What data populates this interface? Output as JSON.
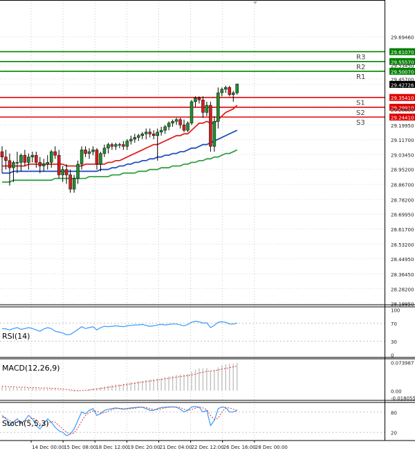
{
  "chart_data": [
    {
      "type": "candlestick",
      "panel": "price",
      "x_ticks": [
        "16:00",
        "14 Dec 00:00",
        "15 Dec 08:00",
        "18 Dec 12:00",
        "19 Dec 20:00",
        "21 Dec 04:00",
        "22 Dec 12:00",
        "26 Dec 16:00",
        "28 Dec 00:00"
      ],
      "y_ticks": [
        "29.69460",
        "29.61070",
        "29.55570",
        "29.53450",
        "29.50070",
        "29.45700",
        "29.42726",
        "29.35410",
        "29.29910",
        "29.28600",
        "29.24410",
        "29.19950",
        "29.11700",
        "29.03450",
        "28.95200",
        "28.86700",
        "28.78200",
        "28.69950",
        "28.61700",
        "28.53200",
        "28.44950",
        "28.36450",
        "28.28200",
        "28.19950"
      ],
      "ylim": [
        28.1995,
        29.7066
      ],
      "last_price": "29.42726",
      "grid": true,
      "levels": [
        {
          "name": "R3",
          "value": 29.6107,
          "value_label": "29.61070",
          "color": "#008000"
        },
        {
          "name": "R2",
          "value": 29.5557,
          "value_label": "29.55570",
          "color": "#008000"
        },
        {
          "name": "R1",
          "value": 29.5007,
          "value_label": "29.50070",
          "color": "#008000"
        },
        {
          "name": "S1",
          "value": 29.3541,
          "value_label": "29.35410",
          "color": "#e00000"
        },
        {
          "name": "S2",
          "value": 29.2991,
          "value_label": "29.29910",
          "color": "#e00000"
        },
        {
          "name": "S3",
          "value": 29.2441,
          "value_label": "29.24410",
          "color": "#e00000"
        }
      ],
      "candles": [
        [
          29.05,
          29.08,
          28.93,
          29.02
        ],
        [
          29.02,
          29.06,
          28.95,
          29.0
        ],
        [
          29.0,
          29.04,
          28.86,
          28.96
        ],
        [
          28.96,
          29.0,
          28.88,
          28.99
        ],
        [
          28.99,
          29.05,
          28.93,
          28.99
        ],
        [
          28.99,
          29.04,
          28.94,
          29.03
        ],
        [
          29.03,
          29.06,
          28.97,
          28.99
        ],
        [
          28.99,
          29.04,
          28.95,
          29.02
        ],
        [
          29.02,
          29.05,
          28.99,
          29.03
        ],
        [
          29.03,
          29.05,
          28.96,
          28.99
        ],
        [
          28.99,
          29.02,
          28.93,
          28.97
        ],
        [
          28.97,
          29.01,
          28.94,
          28.98
        ],
        [
          28.98,
          29.03,
          28.95,
          28.99
        ],
        [
          28.99,
          29.06,
          28.96,
          29.05
        ],
        [
          29.05,
          29.08,
          29.01,
          29.03
        ],
        [
          29.03,
          29.06,
          28.9,
          28.92
        ],
        [
          28.92,
          28.97,
          28.88,
          28.95
        ],
        [
          28.95,
          28.98,
          28.87,
          28.92
        ],
        [
          28.92,
          28.95,
          28.82,
          28.84
        ],
        [
          28.84,
          28.92,
          28.82,
          28.9
        ],
        [
          28.9,
          29.0,
          28.87,
          28.98
        ],
        [
          28.98,
          29.08,
          28.95,
          29.06
        ],
        [
          29.06,
          29.08,
          29.02,
          29.04
        ],
        [
          29.04,
          29.07,
          29.01,
          29.05
        ],
        [
          29.05,
          29.08,
          29.03,
          29.06
        ],
        [
          29.06,
          29.07,
          28.95,
          28.98
        ],
        [
          28.98,
          29.05,
          28.94,
          29.04
        ],
        [
          29.04,
          29.09,
          29.02,
          29.07
        ],
        [
          29.07,
          29.1,
          29.04,
          29.09
        ],
        [
          29.09,
          29.1,
          29.06,
          29.08
        ],
        [
          29.08,
          29.1,
          29.06,
          29.09
        ],
        [
          29.09,
          29.1,
          29.07,
          29.09
        ],
        [
          29.09,
          29.11,
          29.06,
          29.08
        ],
        [
          29.08,
          29.12,
          29.06,
          29.11
        ],
        [
          29.11,
          29.14,
          29.09,
          29.12
        ],
        [
          29.12,
          29.15,
          29.1,
          29.13
        ],
        [
          29.13,
          29.15,
          29.11,
          29.14
        ],
        [
          29.14,
          29.16,
          29.12,
          29.15
        ],
        [
          29.15,
          29.18,
          29.12,
          29.16
        ],
        [
          29.16,
          29.18,
          29.13,
          29.15
        ],
        [
          29.15,
          29.17,
          29.12,
          29.14
        ],
        [
          29.14,
          29.18,
          29.0,
          29.16
        ],
        [
          29.16,
          29.19,
          29.14,
          29.17
        ],
        [
          29.17,
          29.2,
          29.15,
          29.19
        ],
        [
          29.19,
          29.22,
          29.17,
          29.21
        ],
        [
          29.21,
          29.23,
          29.19,
          29.22
        ],
        [
          29.22,
          29.24,
          29.2,
          29.23
        ],
        [
          29.23,
          29.24,
          29.18,
          29.2
        ],
        [
          29.2,
          29.23,
          29.16,
          29.17
        ],
        [
          29.17,
          29.22,
          29.16,
          29.21
        ],
        [
          29.21,
          29.34,
          29.2,
          29.33
        ],
        [
          29.33,
          29.36,
          29.3,
          29.35
        ],
        [
          29.35,
          29.36,
          29.32,
          29.34
        ],
        [
          29.34,
          29.36,
          29.24,
          29.27
        ],
        [
          29.27,
          29.33,
          29.25,
          29.31
        ],
        [
          29.31,
          29.33,
          29.05,
          29.08
        ],
        [
          29.08,
          29.25,
          29.05,
          29.22
        ],
        [
          29.22,
          29.41,
          29.18,
          29.38
        ],
        [
          29.38,
          29.41,
          29.36,
          29.4
        ],
        [
          29.4,
          29.42,
          29.38,
          29.41
        ],
        [
          29.41,
          29.42,
          29.36,
          29.37
        ],
        [
          29.37,
          29.39,
          29.33,
          29.38
        ],
        [
          29.38,
          29.43,
          29.37,
          29.43
        ]
      ],
      "ma_series": [
        {
          "color": "#e02020",
          "values": [
            28.97,
            28.97,
            28.97,
            28.97,
            28.97,
            28.97,
            28.97,
            28.98,
            28.98,
            28.98,
            28.98,
            28.98,
            28.98,
            28.98,
            28.98,
            28.98,
            28.98,
            28.97,
            28.97,
            28.97,
            28.97,
            28.97,
            28.98,
            28.98,
            28.98,
            28.98,
            28.98,
            28.98,
            28.99,
            28.99,
            29.0,
            29.0,
            29.01,
            29.02,
            29.03,
            29.04,
            29.05,
            29.06,
            29.07,
            29.08,
            29.09,
            29.09,
            29.1,
            29.11,
            29.12,
            29.13,
            29.14,
            29.14,
            29.15,
            29.15,
            29.17,
            29.19,
            29.21,
            29.21,
            29.22,
            29.21,
            29.21,
            29.23,
            29.25,
            29.27,
            29.28,
            29.29,
            29.31
          ]
        },
        {
          "color": "#2050c0",
          "values": [
            28.93,
            28.93,
            28.93,
            28.94,
            28.94,
            28.94,
            28.94,
            28.94,
            28.94,
            28.94,
            28.94,
            28.94,
            28.94,
            28.94,
            28.94,
            28.94,
            28.94,
            28.94,
            28.94,
            28.94,
            28.94,
            28.94,
            28.94,
            28.94,
            28.94,
            28.94,
            28.95,
            28.95,
            28.95,
            28.96,
            28.96,
            28.97,
            28.97,
            28.98,
            28.98,
            28.99,
            28.99,
            29.0,
            29.0,
            29.01,
            29.01,
            29.02,
            29.02,
            29.03,
            29.03,
            29.04,
            29.04,
            29.05,
            29.05,
            29.06,
            29.07,
            29.07,
            29.08,
            29.09,
            29.09,
            29.1,
            29.11,
            29.12,
            29.13,
            29.14,
            29.15,
            29.16,
            29.17
          ]
        },
        {
          "color": "#30a040",
          "values": [
            28.88,
            28.88,
            28.88,
            28.89,
            28.89,
            28.89,
            28.89,
            28.89,
            28.89,
            28.89,
            28.89,
            28.89,
            28.89,
            28.89,
            28.9,
            28.9,
            28.9,
            28.9,
            28.9,
            28.9,
            28.9,
            28.9,
            28.9,
            28.91,
            28.91,
            28.91,
            28.91,
            28.91,
            28.91,
            28.92,
            28.92,
            28.92,
            28.93,
            28.93,
            28.93,
            28.93,
            28.94,
            28.94,
            28.94,
            28.95,
            28.95,
            28.95,
            28.96,
            28.96,
            28.96,
            28.97,
            28.97,
            28.97,
            28.98,
            28.98,
            28.99,
            28.99,
            29.0,
            29.0,
            29.01,
            29.01,
            29.02,
            29.02,
            29.03,
            29.04,
            29.04,
            29.05,
            29.06
          ]
        }
      ]
    },
    {
      "type": "line",
      "panel": "rsi",
      "label": "RSI(14)",
      "y_ticks": [
        "100",
        "70",
        "30",
        "0"
      ],
      "ylim": [
        0,
        100
      ],
      "levels": [
        70,
        30
      ],
      "color": "#3399ff",
      "values": [
        58,
        57,
        55,
        58,
        60,
        56,
        58,
        60,
        58,
        55,
        52,
        57,
        60,
        58,
        52,
        50,
        48,
        44,
        45,
        50,
        56,
        62,
        58,
        60,
        62,
        55,
        60,
        63,
        62,
        63,
        64,
        63,
        62,
        64,
        65,
        66,
        66,
        67,
        65,
        63,
        64,
        66,
        67,
        66,
        67,
        68,
        68,
        66,
        64,
        67,
        72,
        74,
        73,
        70,
        71,
        60,
        65,
        72,
        73,
        72,
        68,
        68,
        70
      ]
    },
    {
      "type": "bar+line",
      "panel": "macd",
      "label": "MACD(12,26,9)",
      "y_ticks": [
        "0.073987",
        "0.00",
        "-0.018055"
      ],
      "ylim": [
        -0.018055,
        0.073987
      ],
      "bar_color": "#c0c0c0",
      "signal_color": "#e03030",
      "histogram": [
        0.01,
        0.009,
        0.008,
        0.008,
        0.007,
        0.007,
        0.007,
        0.007,
        0.007,
        0.006,
        0.005,
        0.005,
        0.005,
        0.005,
        0.005,
        0.003,
        0.002,
        0.0,
        -0.002,
        -0.003,
        -0.002,
        0.0,
        0.002,
        0.004,
        0.006,
        0.007,
        0.009,
        0.011,
        0.013,
        0.014,
        0.016,
        0.017,
        0.018,
        0.02,
        0.022,
        0.023,
        0.025,
        0.026,
        0.028,
        0.029,
        0.03,
        0.032,
        0.033,
        0.035,
        0.037,
        0.039,
        0.041,
        0.042,
        0.042,
        0.044,
        0.05,
        0.055,
        0.058,
        0.058,
        0.059,
        0.052,
        0.054,
        0.061,
        0.066,
        0.069,
        0.07,
        0.07,
        0.072
      ],
      "signal": [
        0.011,
        0.011,
        0.01,
        0.01,
        0.009,
        0.009,
        0.009,
        0.008,
        0.008,
        0.008,
        0.007,
        0.007,
        0.007,
        0.006,
        0.006,
        0.005,
        0.004,
        0.003,
        0.002,
        0.001,
        0.0,
        0.0,
        0.001,
        0.002,
        0.003,
        0.004,
        0.006,
        0.007,
        0.009,
        0.01,
        0.012,
        0.013,
        0.015,
        0.016,
        0.018,
        0.019,
        0.021,
        0.022,
        0.024,
        0.025,
        0.026,
        0.028,
        0.029,
        0.031,
        0.032,
        0.034,
        0.035,
        0.037,
        0.038,
        0.039,
        0.041,
        0.043,
        0.046,
        0.048,
        0.05,
        0.051,
        0.052,
        0.054,
        0.056,
        0.058,
        0.06,
        0.062,
        0.064
      ]
    },
    {
      "type": "line",
      "panel": "stoch",
      "label": "Stoch(5,5,3)",
      "y_ticks": [
        "80",
        "20"
      ],
      "ylim": [
        0,
        100
      ],
      "levels": [
        80,
        20
      ],
      "main_color": "#3399ff",
      "signal_color": "#e03030",
      "main": [
        70,
        60,
        40,
        50,
        60,
        45,
        55,
        70,
        60,
        40,
        30,
        45,
        60,
        50,
        35,
        25,
        20,
        10,
        15,
        30,
        55,
        80,
        75,
        85,
        90,
        70,
        75,
        85,
        88,
        90,
        92,
        90,
        88,
        90,
        92,
        93,
        94,
        94,
        90,
        85,
        85,
        90,
        93,
        94,
        95,
        95,
        94,
        88,
        80,
        85,
        95,
        96,
        94,
        80,
        85,
        40,
        55,
        90,
        95,
        93,
        80,
        80,
        85
      ],
      "signal": [
        65,
        63,
        55,
        50,
        52,
        52,
        53,
        58,
        62,
        58,
        45,
        40,
        45,
        52,
        50,
        40,
        30,
        20,
        16,
        18,
        33,
        53,
        70,
        78,
        83,
        82,
        77,
        78,
        82,
        87,
        90,
        91,
        90,
        89,
        90,
        91,
        93,
        94,
        93,
        90,
        87,
        87,
        89,
        92,
        94,
        95,
        95,
        93,
        88,
        85,
        87,
        91,
        95,
        92,
        87,
        70,
        58,
        62,
        80,
        92,
        92,
        88,
        85
      ]
    }
  ]
}
